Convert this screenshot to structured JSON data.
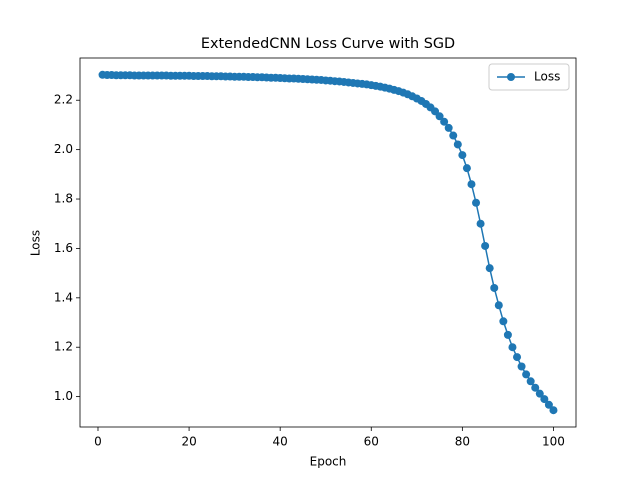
{
  "chart_data": {
    "type": "line",
    "title": "ExtendedCNN Loss Curve with SGD",
    "x_label": "Epoch",
    "y_label": "Loss",
    "x": [
      1,
      2,
      3,
      4,
      5,
      6,
      7,
      8,
      9,
      10,
      11,
      12,
      13,
      14,
      15,
      16,
      17,
      18,
      19,
      20,
      21,
      22,
      23,
      24,
      25,
      26,
      27,
      28,
      29,
      30,
      31,
      32,
      33,
      34,
      35,
      36,
      37,
      38,
      39,
      40,
      41,
      42,
      43,
      44,
      45,
      46,
      47,
      48,
      49,
      50,
      51,
      52,
      53,
      54,
      55,
      56,
      57,
      58,
      59,
      60,
      61,
      62,
      63,
      64,
      65,
      66,
      67,
      68,
      69,
      70,
      71,
      72,
      73,
      74,
      75,
      76,
      77,
      78,
      79,
      80,
      81,
      82,
      83,
      84,
      85,
      86,
      87,
      88,
      89,
      90,
      91,
      92,
      93,
      94,
      95,
      96,
      97,
      98,
      99,
      100
    ],
    "series": [
      {
        "name": "Loss",
        "color": "#1f77b4",
        "values": [
          2.303,
          2.302,
          2.302,
          2.301,
          2.301,
          2.301,
          2.301,
          2.3,
          2.3,
          2.3,
          2.3,
          2.3,
          2.3,
          2.3,
          2.3,
          2.299,
          2.299,
          2.299,
          2.299,
          2.299,
          2.298,
          2.298,
          2.298,
          2.298,
          2.297,
          2.297,
          2.297,
          2.296,
          2.296,
          2.295,
          2.295,
          2.295,
          2.294,
          2.294,
          2.293,
          2.293,
          2.292,
          2.291,
          2.291,
          2.29,
          2.289,
          2.288,
          2.288,
          2.287,
          2.286,
          2.285,
          2.284,
          2.283,
          2.282,
          2.28,
          2.279,
          2.277,
          2.276,
          2.274,
          2.272,
          2.27,
          2.268,
          2.266,
          2.264,
          2.261,
          2.258,
          2.255,
          2.251,
          2.247,
          2.242,
          2.237,
          2.231,
          2.224,
          2.216,
          2.207,
          2.197,
          2.185,
          2.171,
          2.155,
          2.135,
          2.113,
          2.088,
          2.057,
          2.021,
          1.978,
          1.925,
          1.86,
          1.785,
          1.7,
          1.61,
          1.52,
          1.44,
          1.37,
          1.305,
          1.25,
          1.2,
          1.16,
          1.122,
          1.09,
          1.062,
          1.036,
          1.012,
          0.99,
          0.967,
          0.945
        ]
      }
    ],
    "xlim": [
      -3.95,
      104.95
    ],
    "xticks": [
      0,
      20,
      40,
      60,
      80,
      100
    ],
    "ylim": [
      0.877,
      2.371
    ],
    "yticks": [
      {
        "value": 1,
        "label": "1.0"
      },
      1.2,
      1.4,
      1.6,
      1.8,
      {
        "value": 2,
        "label": "2.0"
      },
      2.2
    ],
    "grid": false,
    "legend": "upper right",
    "marker": "circle"
  }
}
